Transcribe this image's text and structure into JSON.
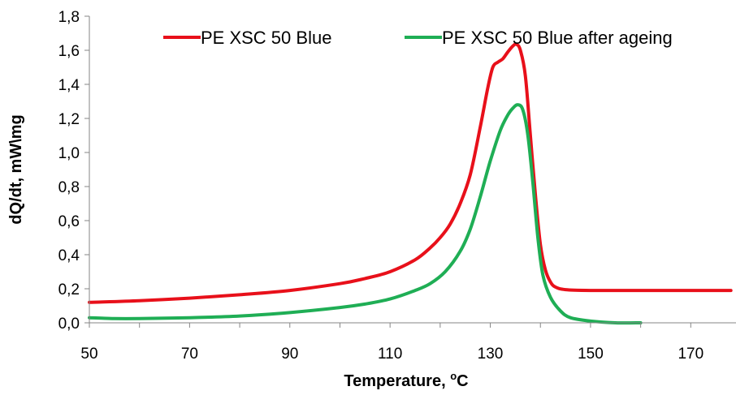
{
  "chart_data": {
    "type": "line",
    "xlabel_main": "Temperature, ",
    "xlabel_sup": "o",
    "xlabel_unit": "C",
    "ylabel": "dQ/dt, mW\\mg",
    "xlim": [
      50,
      180
    ],
    "ylim": [
      0,
      1.8
    ],
    "x_ticks": [
      50,
      70,
      90,
      110,
      130,
      150,
      170
    ],
    "x_tick_labels": [
      "50",
      "70",
      "90",
      "110",
      "130",
      "150",
      "170"
    ],
    "y_ticks": [
      0,
      0.2,
      0.4,
      0.6,
      0.8,
      1.0,
      1.2,
      1.4,
      1.6,
      1.8
    ],
    "y_tick_labels": [
      "0,0",
      "0,2",
      "0,4",
      "0,6",
      "0,8",
      "1,0",
      "1,2",
      "1,4",
      "1,6",
      "1,8"
    ],
    "grid": false,
    "legend_position": "top",
    "series": [
      {
        "name": "PE XSC 50 Blue",
        "color": "#e8101a",
        "points": [
          [
            50,
            0.12
          ],
          [
            60,
            0.13
          ],
          [
            70,
            0.145
          ],
          [
            80,
            0.165
          ],
          [
            90,
            0.19
          ],
          [
            100,
            0.23
          ],
          [
            105,
            0.26
          ],
          [
            110,
            0.3
          ],
          [
            115,
            0.37
          ],
          [
            118,
            0.44
          ],
          [
            120,
            0.5
          ],
          [
            122,
            0.58
          ],
          [
            124,
            0.7
          ],
          [
            126,
            0.87
          ],
          [
            128,
            1.15
          ],
          [
            129.5,
            1.38
          ],
          [
            130.5,
            1.5
          ],
          [
            131.5,
            1.53
          ],
          [
            132.5,
            1.55
          ],
          [
            133.5,
            1.59
          ],
          [
            134.5,
            1.625
          ],
          [
            135.2,
            1.635
          ],
          [
            136,
            1.6
          ],
          [
            137,
            1.45
          ],
          [
            138,
            1.1
          ],
          [
            139,
            0.75
          ],
          [
            140,
            0.46
          ],
          [
            141,
            0.31
          ],
          [
            142,
            0.24
          ],
          [
            143,
            0.21
          ],
          [
            145,
            0.195
          ],
          [
            150,
            0.19
          ],
          [
            160,
            0.19
          ],
          [
            170,
            0.19
          ],
          [
            178,
            0.19
          ]
        ]
      },
      {
        "name": "PE XSC 50 Blue after ageing",
        "color": "#1fae55",
        "points": [
          [
            50,
            0.03
          ],
          [
            55,
            0.025
          ],
          [
            60,
            0.025
          ],
          [
            70,
            0.03
          ],
          [
            80,
            0.04
          ],
          [
            90,
            0.06
          ],
          [
            100,
            0.09
          ],
          [
            105,
            0.11
          ],
          [
            110,
            0.14
          ],
          [
            115,
            0.19
          ],
          [
            118,
            0.23
          ],
          [
            121,
            0.3
          ],
          [
            124,
            0.42
          ],
          [
            126,
            0.55
          ],
          [
            128,
            0.74
          ],
          [
            130,
            0.95
          ],
          [
            132,
            1.13
          ],
          [
            133.5,
            1.22
          ],
          [
            134.5,
            1.26
          ],
          [
            135.5,
            1.28
          ],
          [
            136.5,
            1.25
          ],
          [
            137.5,
            1.1
          ],
          [
            138.5,
            0.82
          ],
          [
            139.5,
            0.5
          ],
          [
            140.5,
            0.28
          ],
          [
            142,
            0.15
          ],
          [
            144,
            0.07
          ],
          [
            146,
            0.03
          ],
          [
            150,
            0.01
          ],
          [
            155,
            0.0
          ],
          [
            160,
            0.0
          ]
        ]
      }
    ]
  }
}
